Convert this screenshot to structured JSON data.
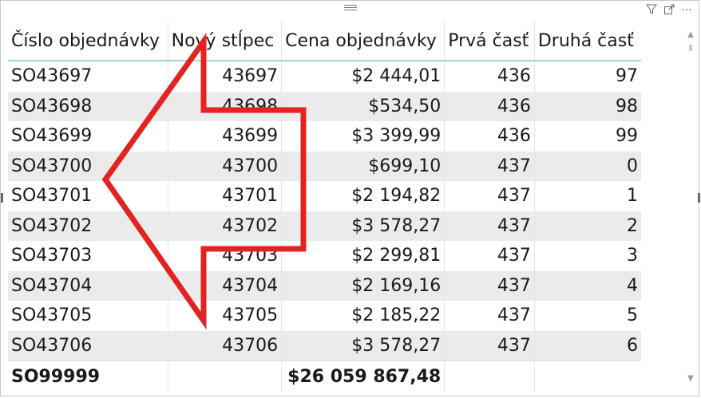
{
  "table": {
    "headers": [
      "Číslo objednávky",
      "Nový stĺpec",
      "Cena objednávky",
      "Prvá časť",
      "Druhá časť"
    ],
    "rows": [
      [
        "SO43697",
        "43697",
        "$2 444,01",
        "436",
        "97"
      ],
      [
        "SO43698",
        "43698",
        "$534,50",
        "436",
        "98"
      ],
      [
        "SO43699",
        "43699",
        "$3 399,99",
        "436",
        "99"
      ],
      [
        "SO43700",
        "43700",
        "$699,10",
        "437",
        "0"
      ],
      [
        "SO43701",
        "43701",
        "$2 194,82",
        "437",
        "1"
      ],
      [
        "SO43702",
        "43702",
        "$3 578,27",
        "437",
        "2"
      ],
      [
        "SO43703",
        "43703",
        "$2 299,81",
        "437",
        "3"
      ],
      [
        "SO43704",
        "43704",
        "$2 169,16",
        "437",
        "4"
      ],
      [
        "SO43705",
        "43705",
        "$2 185,22",
        "437",
        "5"
      ],
      [
        "SO43706",
        "43706",
        "$3 578,27",
        "437",
        "6"
      ]
    ],
    "total": [
      "SO99999",
      "",
      "$26 059 867,48",
      "",
      ""
    ]
  },
  "icons": {
    "filter": "filter-icon",
    "focus": "focus-mode-icon",
    "more": "more-options-icon",
    "scroll_up": "chevron-up-icon",
    "scroll_down": "chevron-down-icon"
  },
  "colors": {
    "header_underline": "#9bd6d6",
    "band": "#ebebeb",
    "annotation_arrow": "#e32222"
  }
}
